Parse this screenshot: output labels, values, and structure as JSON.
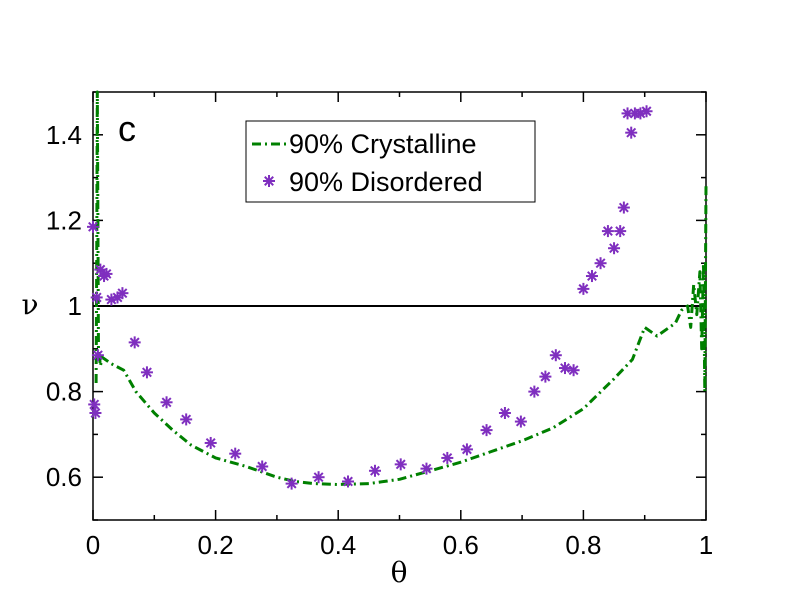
{
  "chart_data": {
    "type": "line",
    "panel_label": "c",
    "xlabel": "θ",
    "ylabel": "ν",
    "xlim": [
      0,
      1
    ],
    "ylim": [
      0.5,
      1.5
    ],
    "xticks": [
      0,
      0.2,
      0.4,
      0.6,
      0.8,
      1
    ],
    "xtick_labels": [
      "0",
      "0.2",
      "0.4",
      "0.6",
      "0.8",
      "1"
    ],
    "yticks": [
      0.6,
      0.8,
      1.0,
      1.2,
      1.4
    ],
    "ytick_labels": [
      "0.6",
      "0.8",
      "1",
      "1.2",
      "1.4"
    ],
    "reference_line": {
      "y": 1.0,
      "color": "#000000"
    },
    "legend_position": "top-center",
    "series": [
      {
        "name": "90% Crystalline",
        "style": "dash-dot line",
        "color": "#008000",
        "x": [
          0.005,
          0.006,
          0.007,
          0.008,
          0.009,
          0.01,
          0.012,
          0.015,
          0.02,
          0.03,
          0.05,
          0.07,
          0.1,
          0.13,
          0.16,
          0.2,
          0.25,
          0.3,
          0.33,
          0.36,
          0.4,
          0.45,
          0.5,
          0.55,
          0.6,
          0.65,
          0.7,
          0.75,
          0.8,
          0.85,
          0.88,
          0.9,
          0.92,
          0.95,
          0.96,
          0.97,
          0.975,
          0.98,
          0.985,
          0.99,
          0.993,
          0.996,
          0.998,
          1.0
        ],
        "y": [
          0.82,
          1.1,
          1.5,
          1.2,
          0.87,
          0.89,
          0.86,
          0.88,
          0.875,
          0.865,
          0.85,
          0.8,
          0.75,
          0.71,
          0.675,
          0.645,
          0.625,
          0.6,
          0.59,
          0.585,
          0.583,
          0.585,
          0.595,
          0.615,
          0.635,
          0.66,
          0.685,
          0.715,
          0.76,
          0.83,
          0.875,
          0.95,
          0.93,
          0.96,
          0.99,
          1.0,
          0.95,
          1.05,
          0.98,
          1.08,
          0.9,
          1.1,
          0.8,
          1.28
        ]
      },
      {
        "name": "90% Disordered",
        "style": "asterisk markers",
        "color": "#7f2fbf",
        "x": [
          0.0,
          0.002,
          0.004,
          0.006,
          0.008,
          0.012,
          0.018,
          0.022,
          0.03,
          0.04,
          0.048,
          0.068,
          0.088,
          0.12,
          0.152,
          0.192,
          0.232,
          0.276,
          0.324,
          0.368,
          0.416,
          0.46,
          0.502,
          0.544,
          0.578,
          0.61,
          0.642,
          0.672,
          0.698,
          0.72,
          0.738,
          0.755,
          0.77,
          0.784,
          0.8,
          0.814,
          0.828,
          0.84,
          0.85,
          0.86,
          0.866,
          0.872,
          0.878,
          0.884,
          0.893,
          0.903
        ],
        "y": [
          1.185,
          0.77,
          0.75,
          1.02,
          0.885,
          1.085,
          1.07,
          1.075,
          1.015,
          1.02,
          1.03,
          0.915,
          0.845,
          0.775,
          0.735,
          0.68,
          0.655,
          0.625,
          0.585,
          0.6,
          0.59,
          0.615,
          0.63,
          0.62,
          0.645,
          0.665,
          0.71,
          0.75,
          0.73,
          0.8,
          0.835,
          0.885,
          0.855,
          0.85,
          1.04,
          1.07,
          1.1,
          1.175,
          1.135,
          1.175,
          1.23,
          1.45,
          1.405,
          1.45,
          1.45,
          1.455
        ]
      }
    ]
  }
}
